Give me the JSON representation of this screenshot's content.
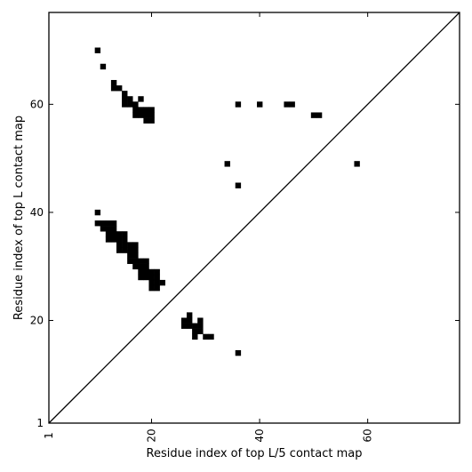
{
  "chart_data": {
    "type": "heatmap",
    "title": "",
    "xlabel": "Residue index of top L/5 contact map",
    "ylabel": "Residue index of top L contact map",
    "xlim": [
      1,
      77
    ],
    "ylim": [
      1,
      77
    ],
    "xticks": [
      1,
      20,
      40,
      60
    ],
    "yticks": [
      1,
      20,
      40,
      60
    ],
    "x_tick_labels": [
      "1",
      "20",
      "40",
      "60"
    ],
    "y_tick_labels": [
      "1",
      "20",
      "40",
      "60"
    ],
    "diagonal": true,
    "grid": false,
    "cell_color": "#000000",
    "background_color": "#ffffff",
    "cells": [
      [
        10,
        70
      ],
      [
        11,
        67
      ],
      [
        13,
        64
      ],
      [
        13,
        63
      ],
      [
        14,
        63
      ],
      [
        15,
        62
      ],
      [
        15,
        61
      ],
      [
        16,
        61
      ],
      [
        18,
        61
      ],
      [
        15,
        60
      ],
      [
        16,
        60
      ],
      [
        17,
        60
      ],
      [
        17,
        59
      ],
      [
        18,
        59
      ],
      [
        19,
        59
      ],
      [
        20,
        59
      ],
      [
        17,
        58
      ],
      [
        18,
        58
      ],
      [
        19,
        58
      ],
      [
        20,
        58
      ],
      [
        19,
        57
      ],
      [
        20,
        57
      ],
      [
        36,
        60
      ],
      [
        40,
        60
      ],
      [
        45,
        60
      ],
      [
        46,
        60
      ],
      [
        50,
        58
      ],
      [
        51,
        58
      ],
      [
        34,
        49
      ],
      [
        58,
        49
      ],
      [
        36,
        45
      ],
      [
        10,
        40
      ],
      [
        10,
        38
      ],
      [
        11,
        38
      ],
      [
        12,
        38
      ],
      [
        13,
        38
      ],
      [
        11,
        37
      ],
      [
        12,
        37
      ],
      [
        13,
        37
      ],
      [
        12,
        36
      ],
      [
        13,
        36
      ],
      [
        14,
        36
      ],
      [
        15,
        36
      ],
      [
        12,
        35
      ],
      [
        13,
        35
      ],
      [
        14,
        35
      ],
      [
        15,
        35
      ],
      [
        14,
        34
      ],
      [
        15,
        34
      ],
      [
        16,
        34
      ],
      [
        17,
        34
      ],
      [
        14,
        33
      ],
      [
        15,
        33
      ],
      [
        16,
        33
      ],
      [
        17,
        33
      ],
      [
        16,
        32
      ],
      [
        17,
        32
      ],
      [
        16,
        31
      ],
      [
        17,
        31
      ],
      [
        18,
        31
      ],
      [
        19,
        31
      ],
      [
        17,
        30
      ],
      [
        18,
        30
      ],
      [
        19,
        30
      ],
      [
        18,
        29
      ],
      [
        19,
        29
      ],
      [
        20,
        29
      ],
      [
        21,
        29
      ],
      [
        18,
        28
      ],
      [
        19,
        28
      ],
      [
        20,
        28
      ],
      [
        21,
        28
      ],
      [
        20,
        27
      ],
      [
        21,
        27
      ],
      [
        22,
        27
      ],
      [
        20,
        26
      ],
      [
        21,
        26
      ],
      [
        27,
        21
      ],
      [
        26,
        20
      ],
      [
        27,
        20
      ],
      [
        29,
        20
      ],
      [
        26,
        19
      ],
      [
        27,
        19
      ],
      [
        28,
        19
      ],
      [
        29,
        19
      ],
      [
        28,
        18
      ],
      [
        29,
        18
      ],
      [
        28,
        17
      ],
      [
        30,
        17
      ],
      [
        31,
        17
      ],
      [
        36,
        14
      ]
    ]
  }
}
